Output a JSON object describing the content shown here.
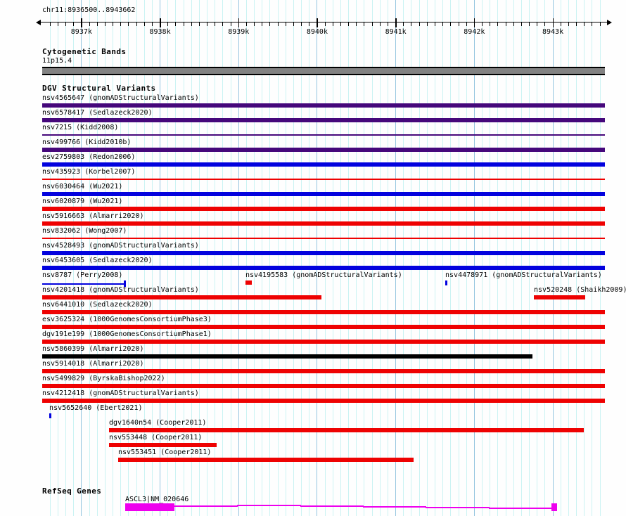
{
  "ruler": {
    "title": "chr11:8936500..8943662",
    "tick_labels": [
      {
        "bp": 8937000,
        "label": "8937k"
      },
      {
        "bp": 8938000,
        "label": "8938k"
      },
      {
        "bp": 8939000,
        "label": "8939k"
      },
      {
        "bp": 8940000,
        "label": "8940k"
      },
      {
        "bp": 8941000,
        "label": "8941k"
      },
      {
        "bp": 8942000,
        "label": "8942k"
      },
      {
        "bp": 8943000,
        "label": "8943k"
      }
    ]
  },
  "cytogenetic": {
    "header": "Cytogenetic Bands",
    "band_label": "11p15.4"
  },
  "dgv": {
    "header": "DGV Structural Variants"
  },
  "refseq": {
    "header": "RefSeq Genes",
    "gene": {
      "label": "ASCL3|NM_020646",
      "color": "magenta",
      "exons": [
        [
          8937556,
          8938183
        ],
        [
          8942982,
          8943053
        ]
      ],
      "connector": [
        8938183,
        8942982
      ]
    }
  },
  "colors": {
    "purple": "#45087B",
    "blue": "#0202DE",
    "red": "#EE0202",
    "black": "#000000",
    "magenta": "#EE00EE",
    "grid_minor": "#CBF3F3",
    "grid_major": "#96C6E0",
    "band_fill": "#828282",
    "band_border": "#000000",
    "text": "#000000"
  },
  "chart_data": {
    "type": "genomic-interval-tracks",
    "region": {
      "chromosome": "chr11",
      "start": 8936500,
      "end": 8943662
    },
    "axis": {
      "tick_unit": "kb",
      "minor_step_bp": 100,
      "major_step_bp": 1000
    },
    "features": [
      {
        "row": 0,
        "id": "nsv4565647",
        "study": "gnomADStructuralVariants",
        "label": "nsv4565647 (gnomADStructuralVariants)",
        "start": 8936500,
        "end": 8943662,
        "color": "purple",
        "shape": "box",
        "thin": false
      },
      {
        "row": 1,
        "id": "nsv6578417",
        "study": "Sedlazeck2020",
        "label": "nsv6578417 (Sedlazeck2020)",
        "start": 8936500,
        "end": 8943662,
        "color": "purple",
        "shape": "box",
        "thin": false
      },
      {
        "row": 2,
        "id": "nsv7215",
        "study": "Kidd2008",
        "label": "nsv7215 (Kidd2008)",
        "start": 8936500,
        "end": 8943662,
        "color": "purple",
        "shape": "box",
        "thin": true
      },
      {
        "row": 3,
        "id": "nsv499766",
        "study": "Kidd2010b",
        "label": "nsv499766 (Kidd2010b)",
        "start": 8936500,
        "end": 8943662,
        "color": "purple",
        "shape": "box",
        "thin": false
      },
      {
        "row": 4,
        "id": "esv2759803",
        "study": "Redon2006",
        "label": "esv2759803 (Redon2006)",
        "start": 8936500,
        "end": 8943662,
        "color": "blue",
        "shape": "box",
        "thin": false
      },
      {
        "row": 5,
        "id": "nsv435923",
        "study": "Korbel2007",
        "label": "nsv435923 (Korbel2007)",
        "start": 8936500,
        "end": 8943662,
        "color": "red",
        "shape": "box",
        "thin": true
      },
      {
        "row": 6,
        "id": "nsv6030464",
        "study": "Wu2021",
        "label": "nsv6030464 (Wu2021)",
        "start": 8936500,
        "end": 8943662,
        "color": "blue",
        "shape": "box",
        "thin": false
      },
      {
        "row": 7,
        "id": "nsv6020879",
        "study": "Wu2021",
        "label": "nsv6020879 (Wu2021)",
        "start": 8936500,
        "end": 8943662,
        "color": "red",
        "shape": "box",
        "thin": false
      },
      {
        "row": 8,
        "id": "nsv5916663",
        "study": "Almarri2020",
        "label": "nsv5916663 (Almarri2020)",
        "start": 8936500,
        "end": 8943662,
        "color": "red",
        "shape": "box",
        "thin": false
      },
      {
        "row": 9,
        "id": "nsv832062",
        "study": "Wong2007",
        "label": "nsv832062 (Wong2007)",
        "start": 8936500,
        "end": 8943662,
        "color": "red",
        "shape": "box",
        "thin": true
      },
      {
        "row": 10,
        "id": "nsv4528493",
        "study": "gnomADStructuralVariants",
        "label": "nsv4528493 (gnomADStructuralVariants)",
        "start": 8936500,
        "end": 8943662,
        "color": "blue",
        "shape": "box",
        "thin": false
      },
      {
        "row": 11,
        "id": "nsv6453605",
        "study": "Sedlazeck2020",
        "label": "nsv6453605 (Sedlazeck2020)",
        "start": 8936500,
        "end": 8943662,
        "color": "blue",
        "shape": "box",
        "thin": false
      },
      {
        "row": 12,
        "id": "nsv8787",
        "study": "Perry2008",
        "label": "nsv8787 (Perry2008)",
        "start": 8936500,
        "end": 8937556,
        "color": "blue",
        "shape": "line-cap",
        "thin": false
      },
      {
        "row": 12,
        "id": "nsv4195583",
        "study": "gnomADStructuralVariants",
        "label": "nsv4195583 (gnomADStructuralVariants)",
        "start": 8939087,
        "end": 8939168,
        "color": "red",
        "shape": "box",
        "thin": false
      },
      {
        "row": 12,
        "id": "nsv4478971",
        "study": "gnomADStructuralVariants",
        "label": "nsv4478971 (gnomADStructuralVariants)",
        "start": 8941630,
        "end": 8941655,
        "color": "blue",
        "shape": "tick",
        "thin": false
      },
      {
        "row": 13,
        "id": "nsv4201418",
        "study": "gnomADStructuralVariants",
        "label": "nsv4201418 (gnomADStructuralVariants)",
        "start": 8936500,
        "end": 8940055,
        "color": "red",
        "shape": "box",
        "thin": false
      },
      {
        "row": 13,
        "id": "nsv520248",
        "study": "Shaikh2009",
        "label": "nsv520248 (Shaikh2009)",
        "start": 8942758,
        "end": 8943410,
        "color": "red",
        "shape": "box",
        "thin": false
      },
      {
        "row": 14,
        "id": "nsv6441010",
        "study": "Sedlazeck2020",
        "label": "nsv6441010 (Sedlazeck2020)",
        "start": 8936500,
        "end": 8943662,
        "color": "red",
        "shape": "box",
        "thin": false
      },
      {
        "row": 15,
        "id": "esv3625324",
        "study": "1000GenomesConsortiumPhase3",
        "label": "esv3625324 (1000GenomesConsortiumPhase3)",
        "start": 8936500,
        "end": 8943662,
        "color": "red",
        "shape": "box",
        "thin": false
      },
      {
        "row": 16,
        "id": "dgv191e199",
        "study": "1000GenomesConsortiumPhase1",
        "label": "dgv191e199 (1000GenomesConsortiumPhase1)",
        "start": 8936500,
        "end": 8943662,
        "color": "red",
        "shape": "box",
        "thin": false
      },
      {
        "row": 17,
        "id": "nsv5860399",
        "study": "Almarri2020",
        "label": "nsv5860399 (Almarri2020)",
        "start": 8936500,
        "end": 8942740,
        "color": "black",
        "shape": "box",
        "thin": false
      },
      {
        "row": 18,
        "id": "nsv5914018",
        "study": "Almarri2020",
        "label": "nsv5914018 (Almarri2020)",
        "start": 8936500,
        "end": 8943662,
        "color": "red",
        "shape": "box",
        "thin": false
      },
      {
        "row": 19,
        "id": "nsv5499829",
        "study": "ByrskaBishop2022",
        "label": "nsv5499829 (ByrskaBishop2022)",
        "start": 8936500,
        "end": 8943662,
        "color": "red",
        "shape": "box",
        "thin": false
      },
      {
        "row": 20,
        "id": "nsv4212418",
        "study": "gnomADStructuralVariants",
        "label": "nsv4212418 (gnomADStructuralVariants)",
        "start": 8936500,
        "end": 8943662,
        "color": "red",
        "shape": "box",
        "thin": false
      },
      {
        "row": 21,
        "id": "nsv5652640",
        "study": "Ebert2021",
        "label": "nsv5652640 (Ebert2021)",
        "start": 8936590,
        "end": 8936615,
        "color": "blue",
        "shape": "tick",
        "thin": false
      },
      {
        "row": 22,
        "id": "dgv1640n54",
        "study": "Cooper2011",
        "label": "dgv1640n54 (Cooper2011)",
        "start": 8937350,
        "end": 8943393,
        "color": "red",
        "shape": "box",
        "thin": false
      },
      {
        "row": 23,
        "id": "nsv553448",
        "study": "Cooper2011",
        "label": "nsv553448 (Cooper2011)",
        "start": 8937350,
        "end": 8938720,
        "color": "red",
        "shape": "box",
        "thin": false
      },
      {
        "row": 24,
        "id": "nsv553451",
        "study": "Cooper2011",
        "label": "nsv553451 (Cooper2011)",
        "start": 8937467,
        "end": 8941227,
        "color": "red",
        "shape": "box",
        "thin": false
      }
    ]
  }
}
